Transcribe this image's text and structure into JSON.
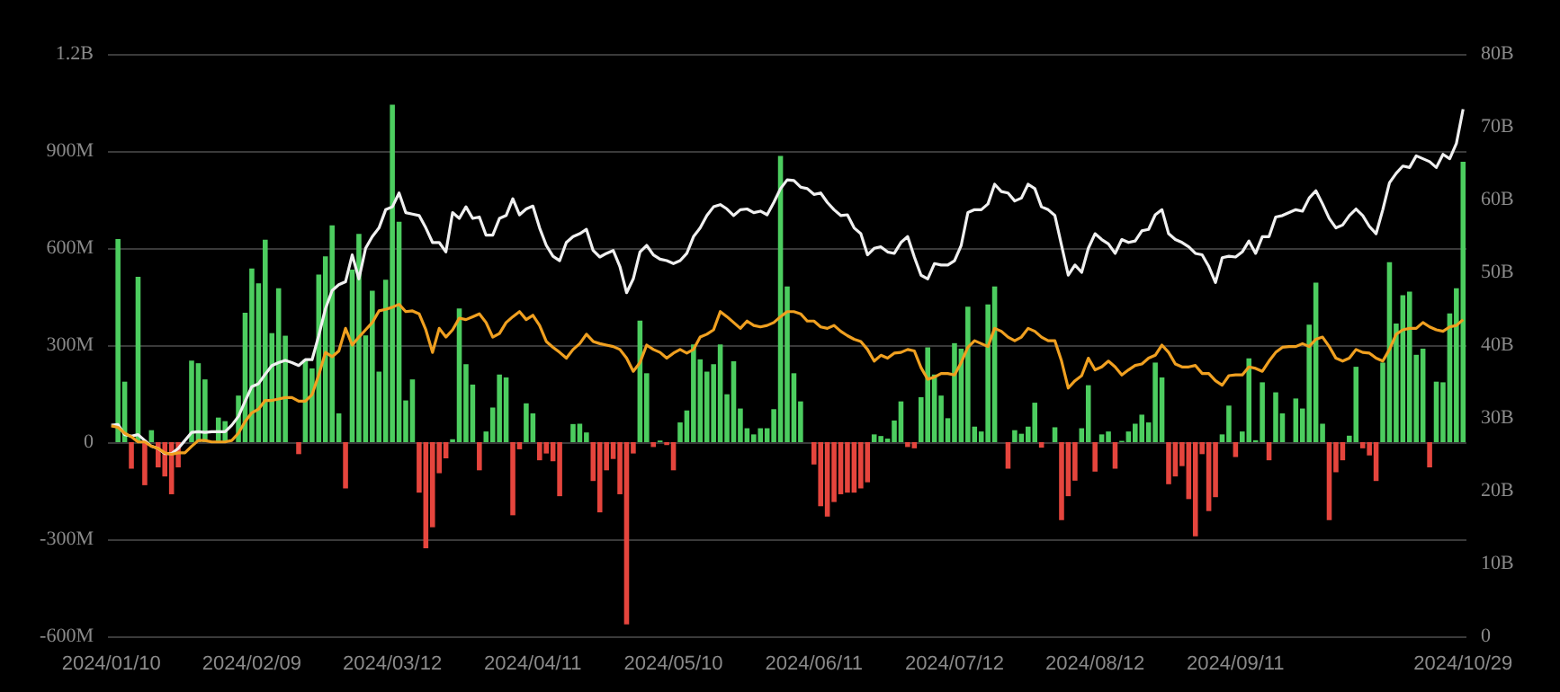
{
  "chart_data": {
    "type": "bar",
    "categories": [
      "2024/01/10",
      null,
      null,
      null,
      null,
      null,
      null,
      null,
      null,
      null,
      null,
      null,
      null,
      null,
      null,
      null,
      null,
      null,
      null,
      null,
      null,
      "2024/02/09",
      null,
      null,
      null,
      null,
      null,
      null,
      null,
      null,
      null,
      null,
      null,
      null,
      null,
      null,
      null,
      null,
      null,
      null,
      null,
      null,
      "2024/03/12",
      null,
      null,
      null,
      null,
      null,
      null,
      null,
      null,
      null,
      null,
      null,
      null,
      null,
      null,
      null,
      null,
      null,
      null,
      null,
      null,
      "2024/04/11",
      null,
      null,
      null,
      null,
      null,
      null,
      null,
      null,
      null,
      null,
      null,
      null,
      null,
      null,
      null,
      null,
      null,
      null,
      null,
      null,
      "2024/05/10",
      null,
      null,
      null,
      null,
      null,
      null,
      null,
      null,
      null,
      null,
      null,
      null,
      null,
      null,
      null,
      null,
      null,
      null,
      null,
      null,
      "2024/06/11",
      null,
      null,
      null,
      null,
      null,
      null,
      null,
      null,
      null,
      null,
      null,
      null,
      null,
      null,
      null,
      null,
      null,
      null,
      null,
      null,
      "2024/07/12",
      null,
      null,
      null,
      null,
      null,
      null,
      null,
      null,
      null,
      null,
      null,
      null,
      null,
      null,
      null,
      null,
      null,
      null,
      null,
      null,
      "2024/08/12",
      null,
      null,
      null,
      null,
      null,
      null,
      null,
      null,
      null,
      null,
      null,
      null,
      null,
      null,
      null,
      null,
      null,
      null,
      null,
      null,
      "2024/09/11",
      null,
      null,
      null,
      null,
      null,
      null,
      null,
      null,
      null,
      null,
      null,
      null,
      null,
      null,
      null,
      null,
      null,
      null,
      null,
      null,
      null,
      null,
      null,
      null,
      null,
      null,
      null,
      null,
      null,
      null,
      null,
      null,
      null,
      "2024/10/29"
    ],
    "series": [
      {
        "values": [
          0,
          628000000.0,
          187000000.0,
          -82000000.0,
          511000000.0,
          -133000000.0,
          37000000.0,
          -78000000.0,
          -106000000.0,
          -161000000.0,
          -78000000.0,
          0,
          252000000.0,
          244000000.0,
          194000000.0,
          0,
          76000000.0,
          65000000.0,
          0,
          144000000.0,
          400000000.0,
          537000000.0,
          491000000.0,
          626000000.0,
          337000000.0,
          476000000.0,
          329000000.0,
          0,
          -37000000.0,
          256000000.0,
          228000000.0,
          518000000.0,
          574000000.0,
          670000000.0,
          89000000.0,
          -143000000.0,
          533000000.0,
          644000000.0,
          330000000.0,
          468000000.0,
          218000000.0,
          502000000.0,
          1043000000.0,
          681000000.0,
          129000000.0,
          194000000.0,
          -156000000.0,
          -328000000.0,
          -263000000.0,
          -96000000.0,
          -50000000.0,
          9000000.0,
          413000000.0,
          241000000.0,
          178000000.0,
          -87000000.0,
          33000000.0,
          107000000.0,
          209000000.0,
          200000000.0,
          -226000000.0,
          -22000000.0,
          120000000.0,
          89000000.0,
          -56000000.0,
          -35000000.0,
          -59000000.0,
          -167000000.0,
          0,
          56000000.0,
          57000000.0,
          30000000.0,
          -120000000.0,
          -217000000.0,
          -87000000.0,
          -52000000.0,
          -161000000.0,
          -563000000.0,
          -35000000.0,
          376000000.0,
          213000000.0,
          -15000000.0,
          5000000.0,
          -9000000.0,
          -87000000.0,
          61000000.0,
          98000000.0,
          302000000.0,
          256000000.0,
          218000000.0,
          241000000.0,
          302000000.0,
          148000000.0,
          250000000.0,
          104000000.0,
          43000000.0,
          24000000.0,
          43000000.0,
          43000000.0,
          102000000.0,
          885000000.0,
          481000000.0,
          213000000.0,
          126000000.0,
          0,
          -69000000.0,
          -198000000.0,
          -230000000.0,
          -185000000.0,
          -161000000.0,
          -156000000.0,
          -156000000.0,
          -143000000.0,
          -124000000.0,
          24000000.0,
          19000000.0,
          11000000.0,
          67000000.0,
          126000000.0,
          -15000000.0,
          -19000000.0,
          139000000.0,
          293000000.0,
          209000000.0,
          144000000.0,
          74000000.0,
          306000000.0,
          289000000.0,
          419000000.0,
          48000000.0,
          33000000.0,
          426000000.0,
          481000000.0,
          0,
          -82000000.0,
          37000000.0,
          26000000.0,
          48000000.0,
          122000000.0,
          -17000000.0,
          0,
          46000000.0,
          -241000000.0,
          -167000000.0,
          -119000000.0,
          43000000.0,
          176000000.0,
          -91000000.0,
          24000000.0,
          33000000.0,
          -82000000.0,
          4000000.0,
          33000000.0,
          57000000.0,
          85000000.0,
          61000000.0,
          246000000.0,
          200000000.0,
          -130000000.0,
          -106000000.0,
          -74000000.0,
          -176000000.0,
          -291000000.0,
          -37000000.0,
          -213000000.0,
          -170000000.0,
          24000000.0,
          113000000.0,
          -46000000.0,
          33000000.0,
          259000000.0,
          6000000.0,
          185000000.0,
          -56000000.0,
          154000000.0,
          89000000.0,
          0,
          135000000.0,
          104000000.0,
          363000000.0,
          493000000.0,
          57000000.0,
          -241000000.0,
          -93000000.0,
          -56000000.0,
          20000000.0,
          233000000.0,
          -19000000.0,
          -41000000.0,
          -120000000.0,
          246000000.0,
          556000000.0,
          367000000.0,
          454000000.0,
          465000000.0,
          270000000.0,
          289000000.0,
          -78000000.0,
          187000000.0,
          185000000.0,
          398000000.0,
          476000000.0,
          867000000.0
        ],
        "colors": [
          "#4ccd5f",
          "#4ccd5f",
          "#4ccd5f",
          "#e5453d",
          "#4ccd5f",
          "#e5453d",
          "#4ccd5f",
          "#e5453d",
          "#e5453d",
          "#e5453d",
          "#e5453d",
          "#4ccd5f",
          "#4ccd5f",
          "#4ccd5f",
          "#4ccd5f",
          "#4ccd5f",
          "#4ccd5f",
          "#4ccd5f",
          "#4ccd5f",
          "#4ccd5f",
          "#4ccd5f",
          "#4ccd5f",
          "#4ccd5f",
          "#4ccd5f",
          "#4ccd5f",
          "#4ccd5f",
          "#4ccd5f",
          "#4ccd5f",
          "#e5453d",
          "#4ccd5f",
          "#4ccd5f",
          "#4ccd5f",
          "#4ccd5f",
          "#4ccd5f",
          "#4ccd5f",
          "#e5453d",
          "#4ccd5f",
          "#4ccd5f",
          "#4ccd5f",
          "#4ccd5f",
          "#4ccd5f",
          "#4ccd5f",
          "#4ccd5f",
          "#4ccd5f",
          "#4ccd5f",
          "#4ccd5f",
          "#e5453d",
          "#e5453d",
          "#e5453d",
          "#e5453d",
          "#e5453d",
          "#4ccd5f",
          "#4ccd5f",
          "#4ccd5f",
          "#4ccd5f",
          "#e5453d",
          "#4ccd5f",
          "#4ccd5f",
          "#4ccd5f",
          "#4ccd5f",
          "#e5453d",
          "#e5453d",
          "#4ccd5f",
          "#4ccd5f",
          "#e5453d",
          "#e5453d",
          "#e5453d",
          "#e5453d",
          "#4ccd5f",
          "#4ccd5f",
          "#4ccd5f",
          "#4ccd5f",
          "#e5453d",
          "#e5453d",
          "#e5453d",
          "#e5453d",
          "#e5453d",
          "#e5453d",
          "#e5453d",
          "#4ccd5f",
          "#4ccd5f",
          "#e5453d",
          "#4ccd5f",
          "#e5453d",
          "#e5453d",
          "#4ccd5f",
          "#4ccd5f",
          "#4ccd5f",
          "#4ccd5f",
          "#4ccd5f",
          "#4ccd5f",
          "#4ccd5f",
          "#4ccd5f",
          "#4ccd5f",
          "#4ccd5f",
          "#4ccd5f",
          "#4ccd5f",
          "#4ccd5f",
          "#4ccd5f",
          "#4ccd5f",
          "#4ccd5f",
          "#4ccd5f",
          "#4ccd5f",
          "#4ccd5f",
          "#4ccd5f",
          "#e5453d",
          "#e5453d",
          "#e5453d",
          "#e5453d",
          "#e5453d",
          "#e5453d",
          "#e5453d",
          "#e5453d",
          "#e5453d",
          "#4ccd5f",
          "#4ccd5f",
          "#4ccd5f",
          "#4ccd5f",
          "#4ccd5f",
          "#e5453d",
          "#e5453d",
          "#4ccd5f",
          "#4ccd5f",
          "#4ccd5f",
          "#4ccd5f",
          "#4ccd5f",
          "#4ccd5f",
          "#4ccd5f",
          "#4ccd5f",
          "#4ccd5f",
          "#4ccd5f",
          "#4ccd5f",
          "#4ccd5f",
          "#4ccd5f",
          "#e5453d",
          "#4ccd5f",
          "#4ccd5f",
          "#4ccd5f",
          "#4ccd5f",
          "#e5453d",
          "#4ccd5f",
          "#4ccd5f",
          "#e5453d",
          "#e5453d",
          "#e5453d",
          "#4ccd5f",
          "#4ccd5f",
          "#e5453d",
          "#4ccd5f",
          "#4ccd5f",
          "#e5453d",
          "#4ccd5f",
          "#4ccd5f",
          "#4ccd5f",
          "#4ccd5f",
          "#4ccd5f",
          "#4ccd5f",
          "#4ccd5f",
          "#e5453d",
          "#e5453d",
          "#e5453d",
          "#e5453d",
          "#e5453d",
          "#e5453d",
          "#e5453d",
          "#e5453d",
          "#4ccd5f",
          "#4ccd5f",
          "#e5453d",
          "#4ccd5f",
          "#4ccd5f",
          "#4ccd5f",
          "#4ccd5f",
          "#e5453d",
          "#4ccd5f",
          "#4ccd5f",
          "#4ccd5f",
          "#4ccd5f",
          "#4ccd5f",
          "#4ccd5f",
          "#4ccd5f",
          "#4ccd5f",
          "#e5453d",
          "#e5453d",
          "#e5453d",
          "#4ccd5f",
          "#4ccd5f",
          "#e5453d",
          "#e5453d",
          "#e5453d",
          "#4ccd5f",
          "#4ccd5f",
          "#4ccd5f",
          "#4ccd5f",
          "#4ccd5f",
          "#4ccd5f",
          "#4ccd5f",
          "#e5453d",
          "#4ccd5f",
          "#4ccd5f",
          "#4ccd5f",
          "#4ccd5f",
          "#4ccd5f"
        ]
      },
      {
        "type": "line",
        "axis": "y2",
        "color": "#f0f0f0",
        "values": [
          29000000000.0,
          29100000000.0,
          27700000000.0,
          27500000000.0,
          27700000000.0,
          26900000000.0,
          26100000000.0,
          25800000000.0,
          25100000000.0,
          25100000000.0,
          25800000000.0,
          26900000000.0,
          28000000000.0,
          28100000000.0,
          28000000000.0,
          28100000000.0,
          28100000000.0,
          28100000000.0,
          29000000000.0,
          30200000000.0,
          32300000000.0,
          34300000000.0,
          34700000000.0,
          36000000000.0,
          37200000000.0,
          37600000000.0,
          37900000000.0,
          37600000000.0,
          37200000000.0,
          38000000000.0,
          38000000000.0,
          41300000000.0,
          45000000000.0,
          47500000000.0,
          48300000000.0,
          48700000000.0,
          52400000000.0,
          49100000000.0,
          53300000000.0,
          54900000000.0,
          56100000000.0,
          58600000000.0,
          59000000000.0,
          60900000000.0,
          58200000000.0,
          58000000000.0,
          57800000000.0,
          56100000000.0,
          54100000000.0,
          54100000000.0,
          52800000000.0,
          58200000000.0,
          57400000000.0,
          59000000000.0,
          57400000000.0,
          57600000000.0,
          55100000000.0,
          55100000000.0,
          57400000000.0,
          57800000000.0,
          60100000000.0,
          57900000000.0,
          58700000000.0,
          59100000000.0,
          56100000000.0,
          53700000000.0,
          52200000000.0,
          51600000000.0,
          54100000000.0,
          54900000000.0,
          55300000000.0,
          55900000000.0,
          53000000000.0,
          52100000000.0,
          52600000000.0,
          53000000000.0,
          50800000000.0,
          47200000000.0,
          49100000000.0,
          52800000000.0,
          53700000000.0,
          52400000000.0,
          51800000000.0,
          51600000000.0,
          51200000000.0,
          51600000000.0,
          52600000000.0,
          54900000000.0,
          56100000000.0,
          57800000000.0,
          59000000000.0,
          59300000000.0,
          58700000000.0,
          57800000000.0,
          58600000000.0,
          58700000000.0,
          58200000000.0,
          58400000000.0,
          57900000000.0,
          59600000000.0,
          61500000000.0,
          62700000000.0,
          62600000000.0,
          61700000000.0,
          61500000000.0,
          60700000000.0,
          60900000000.0,
          59600000000.0,
          58600000000.0,
          57800000000.0,
          57900000000.0,
          56100000000.0,
          55300000000.0,
          52400000000.0,
          53300000000.0,
          53500000000.0,
          52800000000.0,
          52600000000.0,
          54100000000.0,
          54900000000.0,
          52100000000.0,
          49600000000.0,
          49100000000.0,
          51200000000.0,
          51000000000.0,
          51000000000.0,
          51600000000.0,
          53700000000.0,
          58200000000.0,
          58600000000.0,
          58600000000.0,
          59400000000.0,
          62100000000.0,
          61100000000.0,
          60900000000.0,
          59800000000.0,
          60200000000.0,
          62100000000.0,
          61500000000.0,
          59000000000.0,
          58600000000.0,
          57800000000.0,
          53700000000.0,
          49600000000.0,
          51000000000.0,
          50000000000.0,
          53300000000.0,
          55300000000.0,
          54500000000.0,
          53900000000.0,
          52600000000.0,
          54500000000.0,
          54100000000.0,
          54300000000.0,
          55700000000.0,
          55900000000.0,
          57900000000.0,
          58600000000.0,
          55300000000.0,
          54500000000.0,
          54100000000.0,
          53500000000.0,
          52600000000.0,
          52400000000.0,
          50800000000.0,
          48600000000.0,
          52000000000.0,
          52200000000.0,
          52100000000.0,
          52800000000.0,
          54300000000.0,
          52600000000.0,
          54900000000.0,
          54900000000.0,
          57600000000.0,
          57800000000.0,
          58200000000.0,
          58600000000.0,
          58400000000.0,
          60200000000.0,
          61200000000.0,
          59400000000.0,
          57400000000.0,
          56100000000.0,
          56500000000.0,
          57800000000.0,
          58700000000.0,
          57800000000.0,
          56300000000.0,
          55300000000.0,
          58600000000.0,
          62300000000.0,
          63600000000.0,
          64600000000.0,
          64400000000.0,
          66000000000.0,
          65600000000.0,
          65200000000.0,
          64400000000.0,
          66200000000.0,
          65600000000.0,
          67700000000.0,
          72400000000.0
        ]
      },
      {
        "type": "line",
        "axis": "y2",
        "color": "#f0a020",
        "values": [
          28900000000.0,
          28700000000.0,
          27900000000.0,
          27400000000.0,
          26700000000.0,
          26700000000.0,
          26100000000.0,
          25800000000.0,
          25200000000.0,
          25000000000.0,
          25200000000.0,
          25200000000.0,
          26100000000.0,
          26900000000.0,
          26900000000.0,
          26700000000.0,
          26700000000.0,
          26700000000.0,
          26900000000.0,
          27900000000.0,
          29500000000.0,
          30700000000.0,
          31200000000.0,
          32400000000.0,
          32400000000.0,
          32600000000.0,
          32800000000.0,
          32800000000.0,
          32300000000.0,
          32300000000.0,
          33200000000.0,
          35900000000.0,
          39000000000.0,
          38400000000.0,
          39200000000.0,
          42300000000.0,
          40000000000.0,
          41100000000.0,
          42100000000.0,
          43100000000.0,
          44700000000.0,
          44900000000.0,
          45200000000.0,
          45600000000.0,
          44600000000.0,
          44700000000.0,
          44300000000.0,
          42100000000.0,
          39000000000.0,
          42300000000.0,
          41100000000.0,
          42100000000.0,
          43700000000.0,
          43500000000.0,
          43900000000.0,
          44300000000.0,
          43100000000.0,
          41100000000.0,
          41600000000.0,
          43100000000.0,
          43900000000.0,
          44600000000.0,
          43500000000.0,
          44100000000.0,
          42700000000.0,
          40500000000.0,
          39700000000.0,
          39000000000.0,
          38200000000.0,
          39400000000.0,
          40200000000.0,
          41500000000.0,
          40500000000.0,
          40200000000.0,
          40000000000.0,
          39800000000.0,
          39400000000.0,
          38200000000.0,
          36400000000.0,
          37600000000.0,
          40000000000.0,
          39400000000.0,
          39000000000.0,
          38200000000.0,
          38900000000.0,
          39400000000.0,
          38900000000.0,
          39400000000.0,
          41100000000.0,
          41500000000.0,
          42100000000.0,
          44600000000.0,
          43900000000.0,
          43100000000.0,
          42300000000.0,
          43300000000.0,
          42700000000.0,
          42500000000.0,
          42700000000.0,
          43100000000.0,
          43900000000.0,
          44600000000.0,
          44600000000.0,
          44300000000.0,
          43300000000.0,
          43300000000.0,
          42500000000.0,
          42300000000.0,
          42700000000.0,
          41900000000.0,
          41300000000.0,
          40800000000.0,
          40500000000.0,
          39400000000.0,
          37800000000.0,
          38600000000.0,
          38200000000.0,
          38900000000.0,
          39000000000.0,
          39400000000.0,
          39200000000.0,
          36900000000.0,
          35300000000.0,
          35600000000.0,
          36100000000.0,
          36100000000.0,
          35900000000.0,
          37600000000.0,
          39700000000.0,
          40600000000.0,
          40200000000.0,
          39800000000.0,
          42300000000.0,
          41900000000.0,
          41100000000.0,
          40600000000.0,
          41100000000.0,
          42300000000.0,
          41900000000.0,
          41100000000.0,
          40600000000.0,
          40600000000.0,
          37800000000.0,
          34100000000.0,
          35100000000.0,
          35800000000.0,
          38200000000.0,
          36600000000.0,
          37000000000.0,
          37800000000.0,
          37000000000.0,
          35900000000.0,
          36600000000.0,
          37200000000.0,
          37400000000.0,
          38200000000.0,
          38600000000.0,
          40000000000.0,
          39000000000.0,
          37400000000.0,
          37000000000.0,
          37000000000.0,
          37200000000.0,
          36100000000.0,
          36100000000.0,
          35100000000.0,
          34500000000.0,
          35800000000.0,
          35900000000.0,
          35900000000.0,
          37000000000.0,
          36800000000.0,
          36400000000.0,
          37800000000.0,
          39000000000.0,
          39700000000.0,
          39800000000.0,
          39800000000.0,
          40200000000.0,
          39800000000.0,
          40800000000.0,
          41100000000.0,
          39800000000.0,
          38200000000.0,
          37800000000.0,
          38200000000.0,
          39400000000.0,
          39000000000.0,
          38900000000.0,
          38200000000.0,
          37800000000.0,
          39400000000.0,
          41500000000.0,
          42100000000.0,
          42300000000.0,
          42300000000.0,
          43100000000.0,
          42500000000.0,
          42100000000.0,
          41900000000.0,
          42500000000.0,
          42700000000.0,
          43500000000.0
        ]
      }
    ],
    "ylim": [
      -600000000.0,
      1200000000.0
    ],
    "yticks": [
      {
        "value": -600000000.0,
        "label": "-600M"
      },
      {
        "value": -300000000.0,
        "label": "-300M"
      },
      0,
      {
        "value": 300000000.0,
        "label": "300M"
      },
      {
        "value": 600000000.0,
        "label": "600M"
      },
      {
        "value": 900000000.0,
        "label": "900M"
      },
      {
        "value": 1200000000.0,
        "label": "1.2B"
      }
    ],
    "y2lim": [
      0,
      80000000000.0
    ],
    "y2ticks": [
      0,
      {
        "value": 10000000000.0,
        "label": "10B"
      },
      {
        "value": 20000000000.0,
        "label": "20B"
      },
      {
        "value": 30000000000.0,
        "label": "30B"
      },
      {
        "value": 40000000000.0,
        "label": "40B"
      },
      {
        "value": 50000000000.0,
        "label": "50B"
      },
      {
        "value": 60000000000.0,
        "label": "60B"
      },
      {
        "value": 70000000000.0,
        "label": "70B"
      },
      {
        "value": 80000000000.0,
        "label": "80B"
      }
    ],
    "grid": "y"
  }
}
